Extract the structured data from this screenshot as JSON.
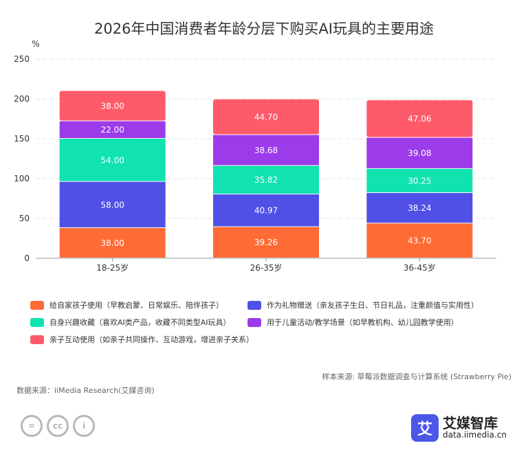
{
  "colors": {
    "s0": "#ff6b35",
    "s1": "#5050e6",
    "s2": "#10e2b0",
    "s3": "#9b3be9",
    "s4": "#ff5a6a",
    "grid": "#e3e3e3",
    "axis": "#999999",
    "label_text": "#ffffff"
  },
  "chart_data": {
    "type": "bar",
    "stacked": true,
    "title": "2026年中国消费者年龄分层下购买AI玩具的主要用途",
    "ylabel": "%",
    "xlabel": "",
    "ylim": [
      0,
      250
    ],
    "yticks": [
      0,
      50,
      100,
      150,
      200,
      250
    ],
    "categories": [
      "18-25岁",
      "26-35岁",
      "36-45岁"
    ],
    "series": [
      {
        "name": "给自家孩子使用（早教启蒙、日常娱乐、陪伴孩子）",
        "values": [
          38.0,
          39.26,
          43.7
        ],
        "labels": [
          "38.00",
          "39.26",
          "43.70"
        ]
      },
      {
        "name": "作为礼物赠送（亲友孩子生日、节日礼品，注重颜值与实用性）",
        "values": [
          58.0,
          40.97,
          38.24
        ],
        "labels": [
          "58.00",
          "40.97",
          "38.24"
        ]
      },
      {
        "name": "自身兴趣收藏（喜欢AI类产品，收藏不同类型AI玩具）",
        "values": [
          54.0,
          35.82,
          30.25
        ],
        "labels": [
          "54.00",
          "35.82",
          "30.25"
        ]
      },
      {
        "name": "用于儿童活动/教学场景（如早教机构、幼儿园教学使用）",
        "values": [
          22.0,
          38.68,
          39.08
        ],
        "labels": [
          "22.00",
          "38.68",
          "39.08"
        ]
      },
      {
        "name": "亲子互动使用（如亲子共同操作、互动游戏，增进亲子关系）",
        "values": [
          38.0,
          44.7,
          47.06
        ],
        "labels": [
          "38.00",
          "44.70",
          "47.06"
        ]
      }
    ],
    "legend_position": "bottom"
  },
  "notes": {
    "sample": "样本来源: 草莓派数据调查与计算系统 (Strawberry Pie)",
    "source": "数据来源：iiMedia Research(艾媒咨询)"
  },
  "brand": {
    "logo_char": "艾",
    "name": "艾媒智库",
    "url": "data.iimedia.cn"
  },
  "license_icons": [
    "=",
    "cc",
    "i"
  ]
}
